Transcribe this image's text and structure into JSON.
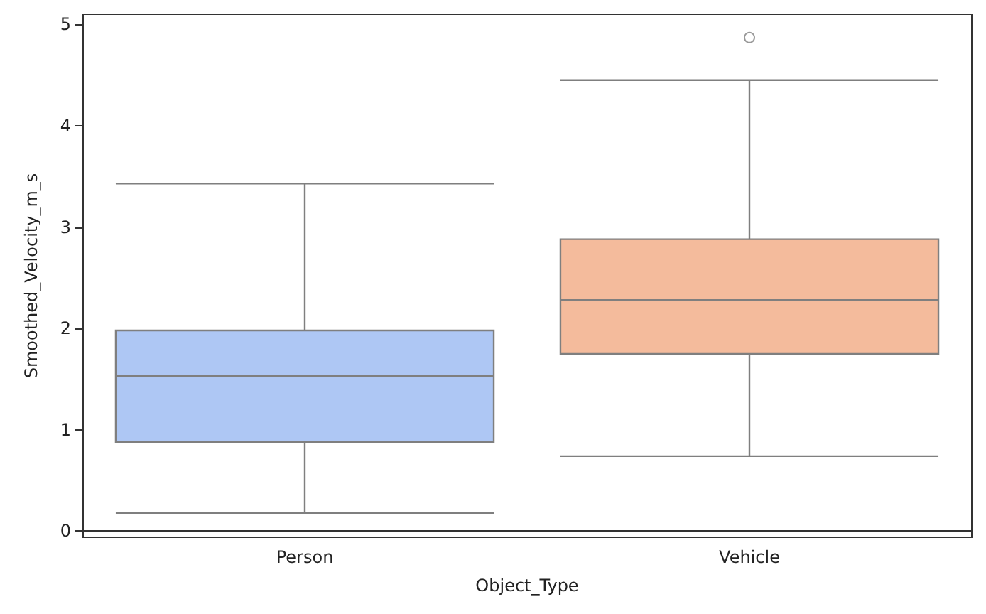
{
  "chart_data": {
    "type": "box",
    "xlabel": "Object_Type",
    "ylabel": "Smoothed_Velocity_m_s",
    "categories": [
      "Person",
      "Vehicle"
    ],
    "colors": [
      "#aec7f4",
      "#f4bb9c"
    ],
    "boxes": [
      {
        "low": 0.18,
        "q1": 0.88,
        "median": 1.53,
        "q3": 1.98,
        "high": 3.43
      },
      {
        "low": 0.74,
        "q1": 1.75,
        "median": 2.28,
        "q3": 2.88,
        "high": 4.45,
        "outliers": [
          4.87
        ]
      }
    ],
    "ylim": [
      -0.06,
      5.1
    ],
    "yticks": [
      0,
      1,
      2,
      3,
      4,
      5
    ]
  }
}
